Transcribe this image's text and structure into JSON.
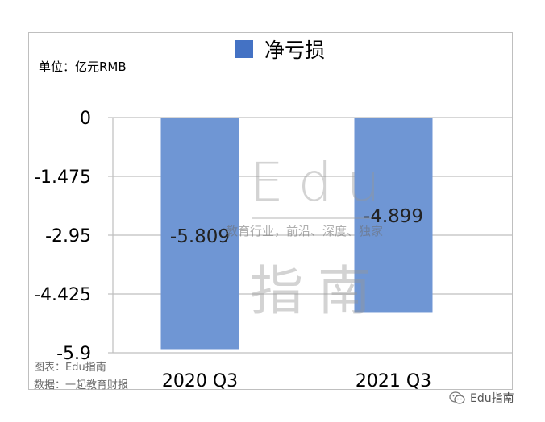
{
  "legend": {
    "label": "净亏损",
    "color": "#4472c4"
  },
  "unit_label": "单位：亿元RMB",
  "chart_data": {
    "type": "bar",
    "categories": [
      "2020 Q3",
      "2021 Q3"
    ],
    "series": [
      {
        "name": "净亏损",
        "values": [
          -5.809,
          -4.899
        ],
        "color": "#6f96d4"
      }
    ],
    "data_labels": [
      "-5.809",
      "-4.899"
    ],
    "y_ticks": [
      "0",
      "-1.475",
      "-2.95",
      "-4.425",
      "-5.9"
    ],
    "y_tick_values": [
      0,
      -1.475,
      -2.95,
      -4.425,
      -5.9
    ],
    "ylim": [
      -5.9,
      0
    ],
    "grid": true,
    "legend_position": "top-center"
  },
  "watermark": {
    "logo_top": "Edu",
    "logo_bottom": "指南",
    "tagline": "教育行业，前沿、深度、独家"
  },
  "source": {
    "chart": "图表：Edu指南",
    "data": "数据：一起教育财报"
  },
  "wechat": {
    "label": "Edu指南",
    "icon": "wechat-icon"
  }
}
